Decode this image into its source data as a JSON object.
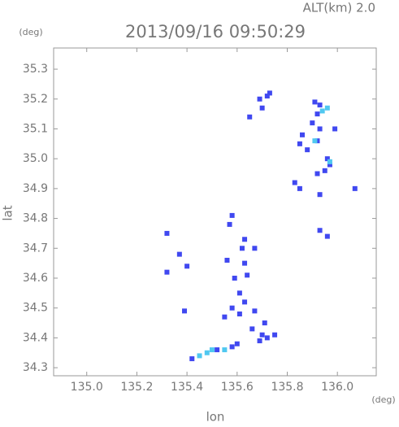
{
  "chart_data": {
    "type": "scatter",
    "title": "2013/09/16 09:50:29",
    "subtitle": "ALT(km) 2.0",
    "y_unit": "(deg)",
    "x_unit": "(deg)",
    "x_label": "lon",
    "y_label": "lat",
    "xlim": [
      134.868,
      136.155
    ],
    "ylim": [
      34.273,
      35.371
    ],
    "xticks": [
      {
        "value": 135,
        "label": "135.0"
      },
      135.2,
      135.4,
      135.6,
      135.8,
      {
        "value": 136,
        "label": "136.0"
      }
    ],
    "yticks": [
      34.3,
      34.4,
      34.5,
      34.6,
      34.7,
      34.8,
      34.9,
      {
        "value": 35,
        "label": "35.0"
      },
      35.1,
      35.2,
      35.3
    ],
    "series": [
      {
        "color": "#4048f0",
        "x": [
          135.73,
          135.72,
          135.7,
          135.69,
          135.65,
          135.91,
          135.93,
          135.92,
          135.9,
          135.93,
          135.92,
          135.99,
          135.86,
          135.85,
          135.88,
          135.96,
          135.97,
          135.95,
          135.92,
          135.83,
          135.85,
          135.93,
          136.07,
          135.58,
          135.57,
          135.93,
          135.96,
          135.32,
          135.37,
          135.63,
          135.62,
          135.67,
          135.56,
          135.63,
          135.59,
          135.64,
          135.4,
          135.32,
          135.61,
          135.63,
          135.58,
          135.61,
          135.55,
          135.39,
          135.67,
          135.71,
          135.66,
          135.7,
          135.72,
          135.69,
          135.75,
          135.6,
          135.58,
          135.52,
          135.42
        ],
        "y": [
          35.22,
          35.21,
          35.17,
          35.2,
          35.14,
          35.19,
          35.18,
          35.15,
          35.12,
          35.1,
          35.06,
          35.1,
          35.08,
          35.05,
          35.03,
          35.0,
          34.98,
          34.96,
          34.95,
          34.92,
          34.9,
          34.88,
          34.9,
          34.81,
          34.78,
          34.76,
          34.74,
          34.75,
          34.68,
          34.73,
          34.7,
          34.7,
          34.66,
          34.65,
          34.6,
          34.61,
          34.64,
          34.62,
          34.55,
          34.52,
          34.5,
          34.48,
          34.47,
          34.49,
          34.49,
          34.45,
          34.43,
          34.41,
          34.4,
          34.39,
          34.41,
          34.38,
          34.37,
          34.36,
          34.33
        ]
      },
      {
        "color": "#50c8f0",
        "x": [
          135.96,
          135.94,
          135.48,
          135.45,
          135.5,
          135.55,
          135.91,
          135.97
        ],
        "y": [
          35.17,
          35.16,
          34.35,
          34.34,
          34.36,
          34.36,
          35.06,
          34.99
        ]
      }
    ]
  }
}
